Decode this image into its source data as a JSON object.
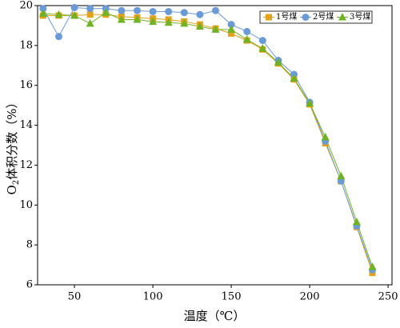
{
  "chart_data": {
    "type": "line",
    "x_label": "温度（℃）",
    "y_label": {
      "main": "O",
      "sub": "2",
      "rest": "体积分数（%）"
    },
    "x": [
      30,
      40,
      50,
      60,
      70,
      80,
      90,
      100,
      110,
      120,
      130,
      140,
      150,
      160,
      170,
      180,
      190,
      200,
      210,
      220,
      230,
      240
    ],
    "series": [
      {
        "name": "1号煤",
        "color": "#e3a21a",
        "marker": "square",
        "values": [
          19.5,
          19.5,
          19.5,
          19.55,
          19.55,
          19.45,
          19.4,
          19.35,
          19.3,
          19.2,
          19.05,
          18.85,
          18.6,
          18.25,
          17.8,
          17.1,
          16.3,
          15.05,
          13.1,
          11.2,
          8.9,
          6.6
        ]
      },
      {
        "name": "2号煤",
        "color": "#6a9bd8",
        "marker": "circle",
        "values": [
          19.85,
          18.45,
          19.9,
          19.85,
          19.85,
          19.75,
          19.75,
          19.7,
          19.7,
          19.65,
          19.55,
          19.75,
          19.05,
          18.7,
          18.25,
          17.25,
          16.55,
          15.15,
          13.2,
          11.2,
          8.95,
          6.75
        ]
      },
      {
        "name": "3号煤",
        "color": "#6fb325",
        "marker": "triangle",
        "values": [
          19.6,
          19.55,
          19.5,
          19.1,
          19.65,
          19.3,
          19.3,
          19.2,
          19.15,
          19.1,
          18.95,
          18.8,
          18.8,
          18.3,
          17.85,
          17.15,
          16.35,
          15.1,
          13.4,
          11.45,
          9.15,
          6.9
        ]
      }
    ],
    "xlim": [
      26.5,
      252.5
    ],
    "xticks": [
      50,
      100,
      150,
      200,
      250
    ],
    "ylim": [
      6,
      20
    ],
    "yticks": [
      6,
      8,
      10,
      12,
      14,
      16,
      18,
      20
    ],
    "legend": "upper-right"
  }
}
